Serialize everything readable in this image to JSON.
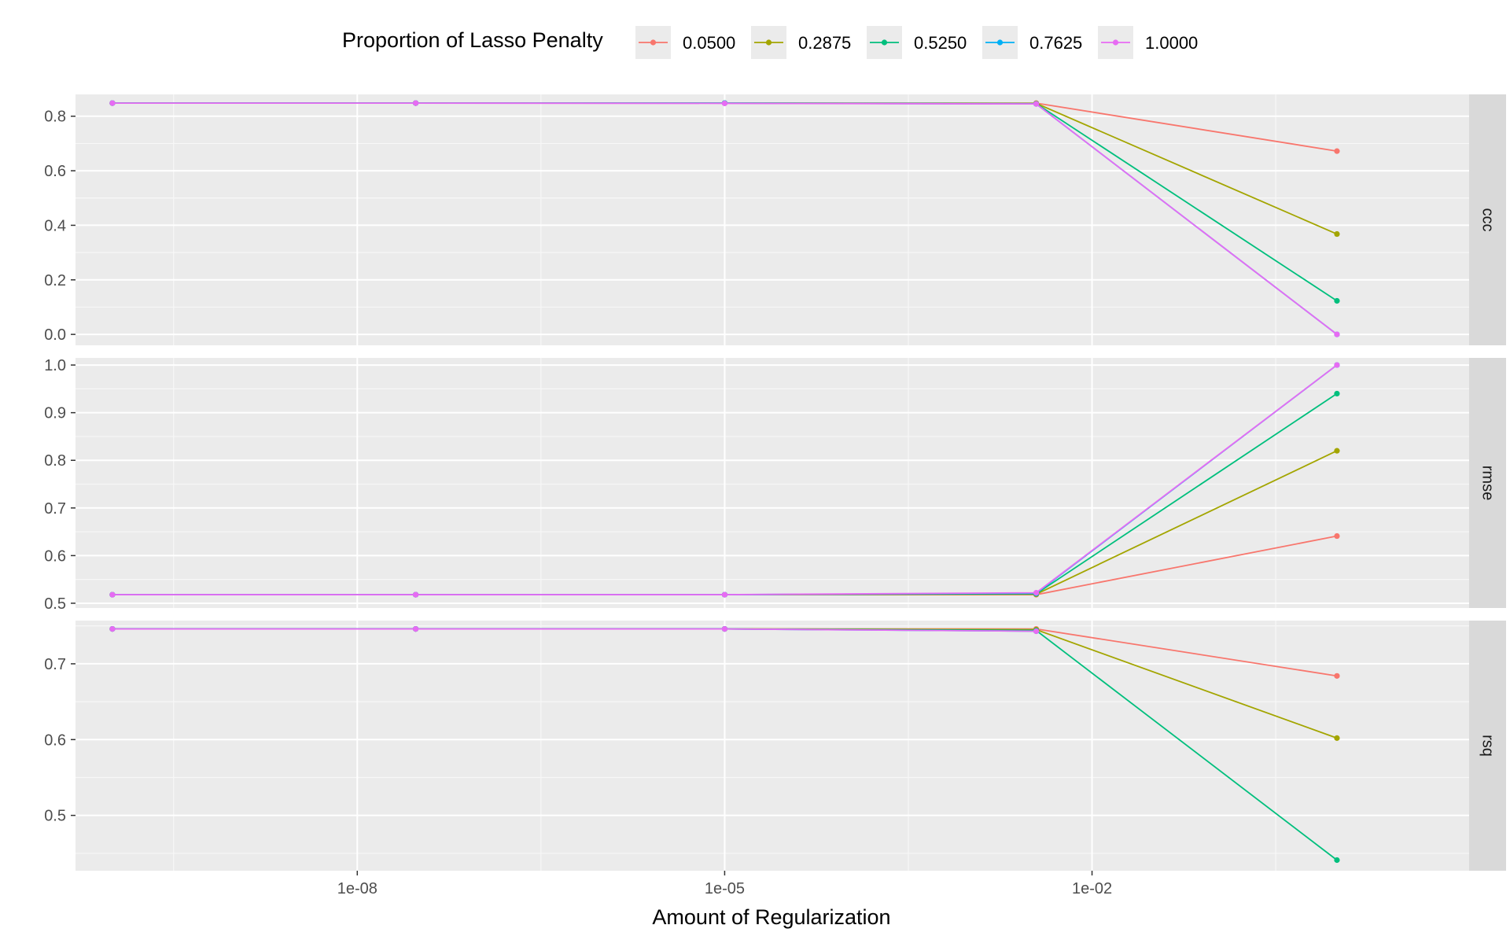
{
  "chart_data": {
    "type": "line",
    "xlabel": "Amount of Regularization",
    "x_scale": "log10",
    "x_ticks": [
      {
        "value": 1e-08,
        "label": "1e-08"
      },
      {
        "value": 1e-05,
        "label": "1e-05"
      },
      {
        "value": 0.01,
        "label": "1e-02"
      }
    ],
    "xlim": [
      5e-11,
      12
    ],
    "x": [
      1e-10,
      3e-08,
      1e-05,
      0.0035,
      1.0
    ],
    "legend": {
      "title": "Proportion of Lasso Penalty",
      "position": "top",
      "entries": [
        "0.0500",
        "0.2875",
        "0.5250",
        "0.7625",
        "1.0000"
      ],
      "colors": [
        "#F8766D",
        "#A3A500",
        "#00BF7D",
        "#00B0F6",
        "#E76BF3"
      ]
    },
    "grid": true,
    "panels": [
      {
        "strip": "ccc",
        "ylim": [
          -0.04,
          0.88
        ],
        "y_ticks": [
          0.0,
          0.2,
          0.4,
          0.6,
          0.8
        ],
        "y_tick_labels": [
          "0.0",
          "0.2",
          "0.4",
          "0.6",
          "0.8"
        ],
        "series": [
          {
            "name": "0.0500",
            "values": [
              0.848,
              0.848,
              0.848,
              0.848,
              0.672
            ]
          },
          {
            "name": "0.2875",
            "values": [
              0.848,
              0.848,
              0.848,
              0.847,
              0.368
            ]
          },
          {
            "name": "0.5250",
            "values": [
              0.848,
              0.848,
              0.848,
              0.846,
              0.123
            ]
          },
          {
            "name": "0.7625",
            "values": [
              0.848,
              0.848,
              0.848,
              0.845,
              0.0
            ]
          },
          {
            "name": "1.0000",
            "values": [
              0.848,
              0.848,
              0.847,
              0.845,
              0.0
            ]
          }
        ]
      },
      {
        "strip": "rmse",
        "ylim": [
          0.49,
          1.015
        ],
        "y_ticks": [
          0.5,
          0.6,
          0.7,
          0.8,
          0.9,
          1.0
        ],
        "y_tick_labels": [
          "0.5",
          "0.6",
          "0.7",
          "0.8",
          "0.9",
          "1.0"
        ],
        "series": [
          {
            "name": "0.0500",
            "values": [
              0.518,
              0.518,
              0.518,
              0.518,
              0.641
            ]
          },
          {
            "name": "0.2875",
            "values": [
              0.518,
              0.518,
              0.518,
              0.519,
              0.82
            ]
          },
          {
            "name": "0.5250",
            "values": [
              0.518,
              0.518,
              0.518,
              0.52,
              0.94
            ]
          },
          {
            "name": "0.7625",
            "values": [
              0.518,
              0.518,
              0.518,
              0.521,
              1.0
            ]
          },
          {
            "name": "1.0000",
            "values": [
              0.518,
              0.518,
              0.518,
              0.522,
              1.0
            ]
          }
        ]
      },
      {
        "strip": "rsq",
        "ylim": [
          0.427,
          0.757
        ],
        "y_ticks": [
          0.5,
          0.6,
          0.7
        ],
        "y_tick_labels": [
          "0.5",
          "0.6",
          "0.7"
        ],
        "series": [
          {
            "name": "0.0500",
            "values": [
              0.746,
              0.746,
              0.746,
              0.746,
              0.684
            ]
          },
          {
            "name": "0.2875",
            "values": [
              0.746,
              0.746,
              0.746,
              0.745,
              0.602
            ]
          },
          {
            "name": "0.5250",
            "values": [
              0.746,
              0.746,
              0.746,
              0.744,
              0.441
            ]
          },
          {
            "name": "0.7625",
            "values": [
              0.746,
              0.746,
              0.746,
              0.743,
              null
            ]
          },
          {
            "name": "1.0000",
            "values": [
              0.746,
              0.746,
              0.746,
              0.743,
              null
            ]
          }
        ]
      }
    ]
  }
}
